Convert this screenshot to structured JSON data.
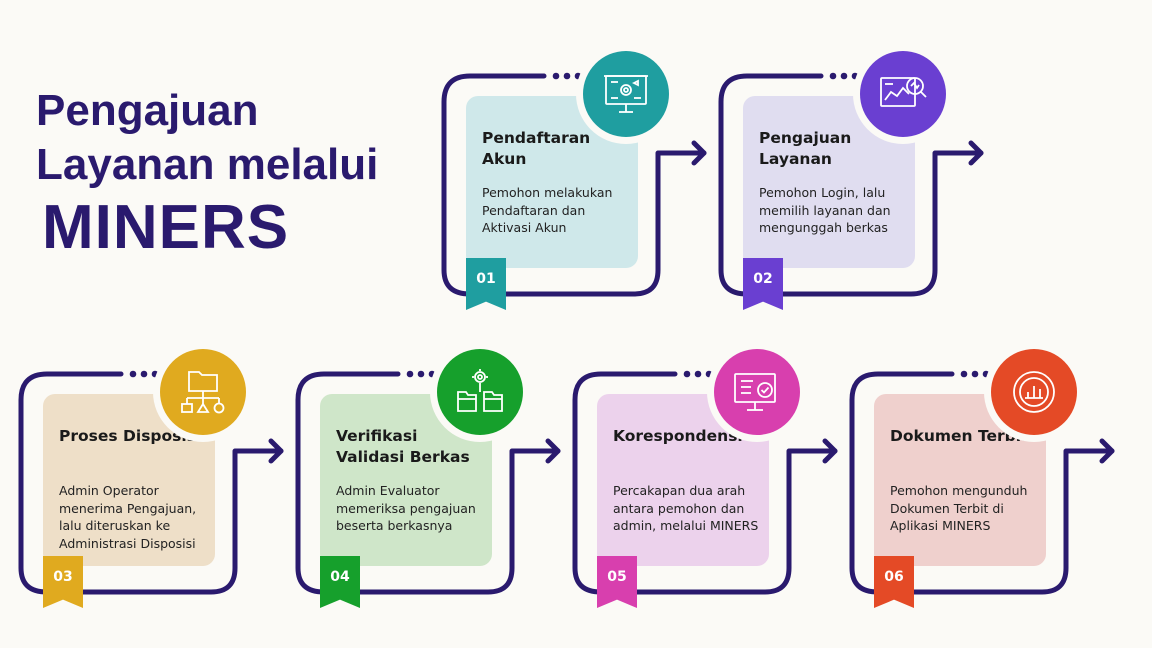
{
  "title": {
    "line1": "Pengajuan",
    "line2": "Layanan melalui",
    "line3": "MINERS"
  },
  "colors": {
    "title": "#2a1a6e",
    "frame": "#2a1a6e"
  },
  "steps": [
    {
      "num": "01",
      "title": "Pendaftaran Akun",
      "desc": "Pemohon melakukan Pendaftaran dan Aktivasi Akun",
      "icon": "presentation-board-icon",
      "accent": "#1f9ea0",
      "card": "#cfe8ea"
    },
    {
      "num": "02",
      "title": "Pengajuan Layanan",
      "desc": "Pemohon Login, lalu memilih layanan dan mengunggah berkas",
      "icon": "analytics-magnifier-icon",
      "accent": "#6a3fd1",
      "card": "#e0ddf0"
    },
    {
      "num": "03",
      "title": "Proses Disposisi",
      "desc": "Admin Operator menerima Pengajuan, lalu diteruskan ke Administrasi Disposisi",
      "icon": "folder-hierarchy-icon",
      "accent": "#e0aa1f",
      "card": "#eedfc8"
    },
    {
      "num": "04",
      "title": "Verifikasi Validasi Berkas",
      "desc": "Admin Evaluator memeriksa pengajuan beserta berkasnya",
      "icon": "gear-folders-icon",
      "accent": "#16a02c",
      "card": "#cfe6c9"
    },
    {
      "num": "05",
      "title": "Korespondensi",
      "desc": "Percakapan dua arah antara pemohon dan admin, melalui MINERS",
      "icon": "monitor-check-icon",
      "accent": "#d83fae",
      "card": "#ecd2ec"
    },
    {
      "num": "06",
      "title": "Dokumen Terbit",
      "desc": "Pemohon mengunduh Dokumen Terbit di Aplikasi MINERS",
      "icon": "chart-circle-icon",
      "accent": "#e44a26",
      "card": "#efd0cd"
    }
  ]
}
